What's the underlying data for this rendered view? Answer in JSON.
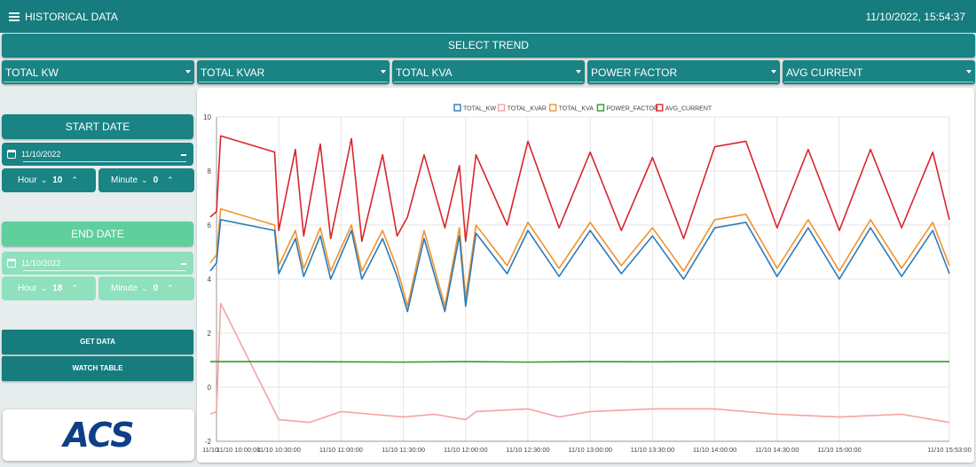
{
  "header": {
    "title": "HISTORICAL DATA",
    "datetime": "11/10/2022, 15:54:37"
  },
  "select_trend_label": "SELECT TREND",
  "dropdowns": [
    "TOTAL KW",
    "TOTAL KVAR",
    "TOTAL KVA",
    "POWER FACTOR",
    "AVG CURRENT"
  ],
  "start": {
    "label": "START DATE",
    "date": "11/10/2022",
    "hour_label": "Hour",
    "hour": "10",
    "minute_label": "Minute",
    "minute": "0"
  },
  "end": {
    "label": "END DATE",
    "date": "11/10/2022",
    "hour_label": "Hour",
    "hour": "18",
    "minute_label": "Minute",
    "minute": "0"
  },
  "buttons": {
    "get_data": "GET DATA",
    "watch_table": "WATCH TABLE"
  },
  "logo_text": "ACS",
  "colors": {
    "primary": "#167c7d",
    "mint": "#5fcf9e",
    "light_mint": "#8fe0bd",
    "kw": "#2b7bba",
    "kvar": "#f4a3a3",
    "kva": "#f0932b",
    "pf": "#2e9a2e",
    "current": "#d8262c"
  },
  "chart_data": {
    "type": "line",
    "legend_position": "top-center",
    "ylim": [
      -2,
      10
    ],
    "y_ticks": [
      "10",
      "8",
      "6",
      "4",
      "2",
      "0",
      "-2"
    ],
    "x_ticks": [
      "11/10 10:00:00",
      "11/10 10:30:00",
      "11/10 11:00:00",
      "11/10 11:30:00",
      "11/10 12:00:00",
      "11/10 12:30:00",
      "11/10 13:00:00",
      "11/10 13:30:00",
      "11/10 14:00:00",
      "11/10 14:30:00",
      "11/10 15:00:00",
      "11/10 15:53:00"
    ],
    "x_first_label": "11/10",
    "x_time_range": [
      "10:00",
      "15:53"
    ],
    "series": [
      {
        "name": "TOTAL_KW",
        "color": "#2b7bba",
        "x": [
          "09:57",
          "10:00",
          "10:02",
          "10:28",
          "10:30",
          "10:38",
          "10:42",
          "10:50",
          "10:55",
          "11:05",
          "11:10",
          "11:20",
          "11:27",
          "11:32",
          "11:40",
          "11:50",
          "11:57",
          "12:00",
          "12:05",
          "12:20",
          "12:30",
          "12:45",
          "13:00",
          "13:15",
          "13:30",
          "13:45",
          "14:00",
          "14:15",
          "14:30",
          "14:45",
          "15:00",
          "15:15",
          "15:30",
          "15:45",
          "15:53"
        ],
        "y": [
          4.3,
          4.6,
          6.2,
          5.8,
          4.2,
          5.5,
          4.1,
          5.6,
          4.0,
          5.8,
          4.0,
          5.5,
          4.1,
          2.8,
          5.5,
          2.8,
          5.6,
          3.0,
          5.7,
          4.2,
          5.8,
          4.1,
          5.8,
          4.2,
          5.6,
          4.0,
          5.9,
          6.1,
          4.1,
          5.9,
          4.0,
          5.9,
          4.1,
          5.8,
          4.2
        ]
      },
      {
        "name": "TOTAL_KVAR",
        "color": "#f4a3a3",
        "x": [
          "09:57",
          "10:00",
          "10:02",
          "10:30",
          "10:45",
          "11:00",
          "11:15",
          "11:30",
          "11:45",
          "12:00",
          "12:05",
          "12:30",
          "12:45",
          "13:00",
          "13:30",
          "14:00",
          "14:30",
          "15:00",
          "15:30",
          "15:53"
        ],
        "y": [
          -1.0,
          -0.9,
          3.1,
          -1.2,
          -1.3,
          -0.9,
          -1.0,
          -1.1,
          -1.0,
          -1.2,
          -0.9,
          -0.8,
          -1.1,
          -0.9,
          -0.8,
          -0.8,
          -1.0,
          -1.1,
          -1.0,
          -1.3
        ]
      },
      {
        "name": "TOTAL_KVA",
        "color": "#f0932b",
        "x": [
          "09:57",
          "10:00",
          "10:02",
          "10:28",
          "10:30",
          "10:38",
          "10:42",
          "10:50",
          "10:55",
          "11:05",
          "11:10",
          "11:20",
          "11:27",
          "11:32",
          "11:40",
          "11:50",
          "11:57",
          "12:00",
          "12:05",
          "12:20",
          "12:30",
          "12:45",
          "13:00",
          "13:15",
          "13:30",
          "13:45",
          "14:00",
          "14:15",
          "14:30",
          "14:45",
          "15:00",
          "15:15",
          "15:30",
          "15:45",
          "15:53"
        ],
        "y": [
          4.6,
          4.9,
          6.6,
          6.0,
          4.5,
          5.8,
          4.4,
          5.9,
          4.3,
          6.0,
          4.3,
          5.8,
          4.4,
          3.0,
          5.8,
          3.0,
          5.9,
          3.3,
          6.0,
          4.5,
          6.1,
          4.4,
          6.1,
          4.5,
          5.9,
          4.3,
          6.2,
          6.4,
          4.4,
          6.2,
          4.3,
          6.2,
          4.4,
          6.1,
          4.5
        ]
      },
      {
        "name": "POWER_FACTOR",
        "color": "#2e9a2e",
        "x": [
          "09:57",
          "10:30",
          "11:00",
          "11:30",
          "12:00",
          "12:30",
          "13:00",
          "13:30",
          "14:00",
          "14:30",
          "15:00",
          "15:53"
        ],
        "y": [
          0.95,
          0.95,
          0.94,
          0.93,
          0.95,
          0.93,
          0.95,
          0.94,
          0.95,
          0.95,
          0.95,
          0.95
        ]
      },
      {
        "name": "AVG_CURRENT",
        "color": "#d8262c",
        "x": [
          "09:57",
          "10:00",
          "10:02",
          "10:28",
          "10:30",
          "10:38",
          "10:42",
          "10:50",
          "10:55",
          "11:05",
          "11:10",
          "11:20",
          "11:27",
          "11:32",
          "11:40",
          "11:50",
          "11:57",
          "12:00",
          "12:05",
          "12:20",
          "12:30",
          "12:45",
          "13:00",
          "13:15",
          "13:30",
          "13:45",
          "14:00",
          "14:15",
          "14:30",
          "14:45",
          "15:00",
          "15:15",
          "15:30",
          "15:45",
          "15:53"
        ],
        "y": [
          6.3,
          6.5,
          9.3,
          8.7,
          5.8,
          8.8,
          5.6,
          9.0,
          5.5,
          9.2,
          5.4,
          8.6,
          5.6,
          6.3,
          8.6,
          5.9,
          8.2,
          5.4,
          8.6,
          6.0,
          9.1,
          5.9,
          8.7,
          5.8,
          8.5,
          5.5,
          8.9,
          9.1,
          5.9,
          8.8,
          5.8,
          8.8,
          5.9,
          8.7,
          6.2
        ]
      }
    ]
  }
}
